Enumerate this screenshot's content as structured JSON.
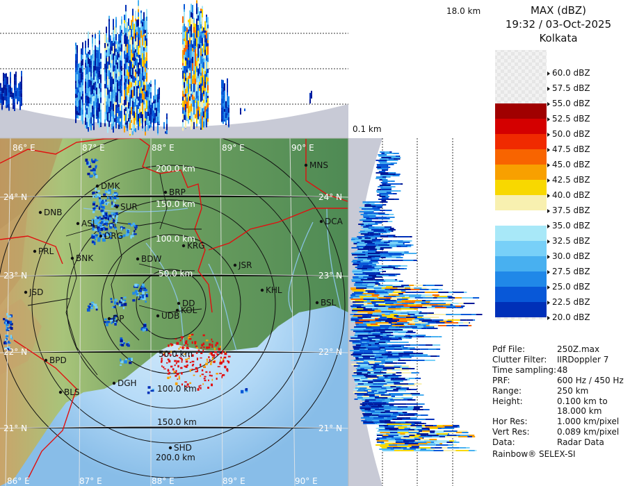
{
  "header": {
    "product": "MAX (dBZ)",
    "datetime": "19:32 / 03-Oct-2025",
    "station": "Kolkata"
  },
  "top_profile": {
    "max_height_label": "18.0 km"
  },
  "side_profile": {
    "min_height_label": "0.1 km"
  },
  "legend": {
    "entries": [
      {
        "label": "60.0 dBZ",
        "color": "#f4f4f4"
      },
      {
        "label": "57.5 dBZ",
        "color": "#f4f4f4"
      },
      {
        "label": "55.0 dBZ",
        "color": "#a00000"
      },
      {
        "label": "52.5 dBZ",
        "color": "#d40000"
      },
      {
        "label": "50.0 dBZ",
        "color": "#f02a00"
      },
      {
        "label": "47.5 dBZ",
        "color": "#f86400"
      },
      {
        "label": "45.0 dBZ",
        "color": "#f8a000"
      },
      {
        "label": "42.5 dBZ",
        "color": "#f8d800"
      },
      {
        "label": "40.0 dBZ",
        "color": "#f8f0b0"
      },
      {
        "label": "37.5 dBZ",
        "color": "#ffffff"
      },
      {
        "label": "35.0 dBZ",
        "color": "#a8e8f8"
      },
      {
        "label": "32.5 dBZ",
        "color": "#78d0f8"
      },
      {
        "label": "30.0 dBZ",
        "color": "#48b0f0"
      },
      {
        "label": "27.5 dBZ",
        "color": "#2088e8"
      },
      {
        "label": "25.0 dBZ",
        "color": "#0858d8"
      },
      {
        "label": "22.5 dBZ",
        "color": "#0030b8"
      },
      {
        "label": "20.0 dBZ",
        "color": "#001898"
      }
    ]
  },
  "info": [
    {
      "key": "Pdf File:",
      "value": "250Z.max"
    },
    {
      "key": "Clutter Filter:",
      "value": "IIRDoppler 7"
    },
    {
      "key": "Time sampling:",
      "value": "48"
    },
    {
      "key": "PRF:",
      "value": "600 Hz / 450 Hz"
    },
    {
      "key": "Range:",
      "value": "250 km"
    },
    {
      "key": "Height:",
      "value": "0.100 km to"
    },
    {
      "key": "",
      "value": "18.000 km"
    },
    {
      "key": "Hor Res:",
      "value": "1.000 km/pixel"
    },
    {
      "key": "Vert Res:",
      "value": "0.089 km/pixel"
    },
    {
      "key": "Data:",
      "value": "Radar Data"
    }
  ],
  "footer": "Rainbow® SELEX-SI",
  "map": {
    "lon_top": [
      "86° E",
      "87° E",
      "88° E",
      "89° E",
      "90° E"
    ],
    "lon_bottom": [
      "86° E",
      "87° E",
      "88° E",
      "89° E",
      "90° E"
    ],
    "lat_left": [
      "24° N",
      "23° N",
      "22° N",
      "21° N"
    ],
    "lat_right": [
      "24° N",
      "23° N",
      "22° N",
      "21° N"
    ],
    "range_rings_upper": [
      "200.0 km",
      "150.0 km",
      "100.0 km",
      "50.0 km"
    ],
    "range_rings_lower": [
      "50.0 km",
      "100.0 km",
      "150.0 km",
      "200.0 km"
    ],
    "cities": [
      "MNS",
      "BRP",
      "DMK",
      "SUR",
      "DNB",
      "ASL",
      "DRG",
      "DCA",
      "KRG",
      "PRL",
      "BNK",
      "BDW",
      "JSR",
      "KHL",
      "JSD",
      "DD",
      "KOL",
      "BSL",
      "DP",
      "UDB",
      "BPD",
      "DGH",
      "BLS",
      "SHD"
    ]
  }
}
